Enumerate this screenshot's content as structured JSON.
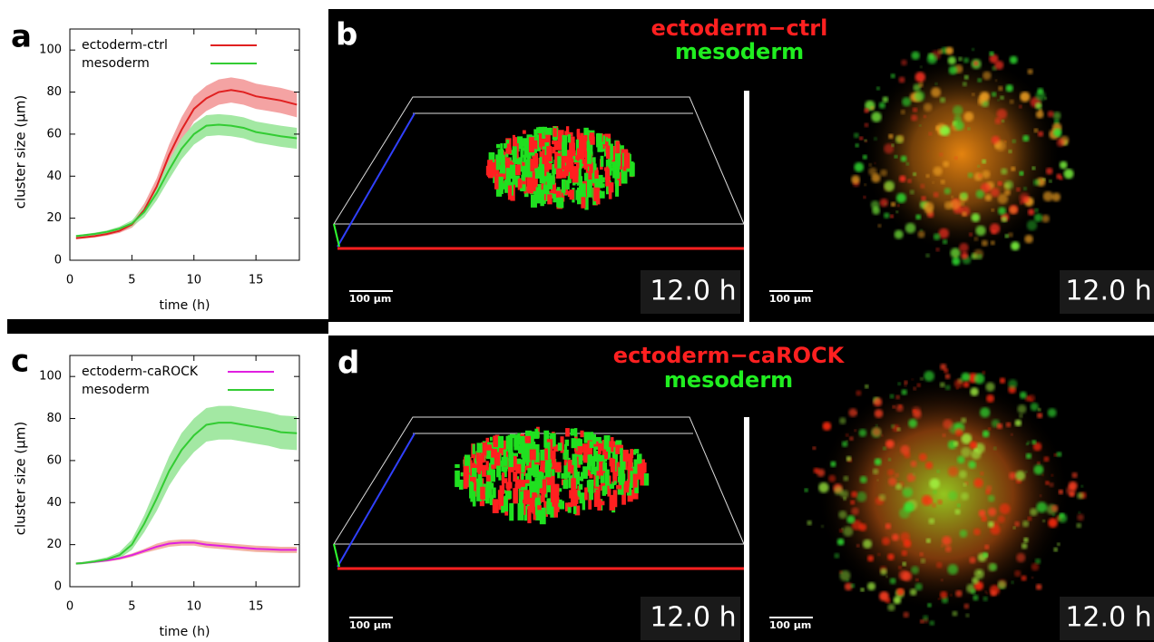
{
  "panel_letters": [
    "a",
    "b",
    "c",
    "d"
  ],
  "chart_data": [
    {
      "type": "line",
      "xlabel": "time (h)",
      "ylabel": "cluster size (µm)",
      "x": [
        0.5,
        1,
        2,
        3,
        4,
        5,
        6,
        7,
        8,
        9,
        10,
        11,
        12,
        13,
        14,
        15,
        16,
        17,
        18.3
      ],
      "xlim": [
        0,
        18.5
      ],
      "xticks": [
        0,
        5,
        10,
        15
      ],
      "ylim": [
        0,
        110
      ],
      "yticks": [
        0,
        20,
        40,
        60,
        80,
        100
      ],
      "legend": "upper left",
      "series": [
        {
          "name": "ectoderm-ctrl",
          "color": "#e02020",
          "band_color": "#f4a3a3",
          "values": [
            10.5,
            10.8,
            11.5,
            12.5,
            14,
            17,
            24,
            35,
            50,
            62,
            72,
            77,
            80,
            81,
            80,
            78,
            77,
            76,
            74
          ],
          "error": [
            0.5,
            0.5,
            0.7,
            0.8,
            1,
            1.5,
            3,
            4,
            5,
            6,
            6,
            6,
            6,
            6,
            6,
            6,
            6,
            6,
            6
          ]
        },
        {
          "name": "mesoderm",
          "color": "#33cc33",
          "band_color": "#a3e8a3",
          "values": [
            11.5,
            11.8,
            12.5,
            13.5,
            15,
            17.5,
            23,
            32,
            43,
            53,
            60,
            64,
            64.5,
            64,
            63,
            61,
            60,
            59,
            58
          ],
          "error": [
            0.5,
            0.5,
            0.6,
            0.7,
            1,
            1.5,
            2.5,
            3.5,
            4.5,
            5,
            5,
            5,
            5,
            5,
            5,
            5,
            5,
            5,
            5
          ]
        }
      ]
    },
    {
      "type": "line",
      "xlabel": "time (h)",
      "ylabel": "cluster size (µm)",
      "x": [
        0.5,
        1,
        2,
        3,
        4,
        5,
        6,
        7,
        8,
        9,
        10,
        11,
        12,
        13,
        14,
        15,
        16,
        17,
        18.3
      ],
      "xlim": [
        0,
        18.5
      ],
      "xticks": [
        0,
        5,
        10,
        15
      ],
      "ylim": [
        0,
        110
      ],
      "yticks": [
        0,
        20,
        40,
        60,
        80,
        100
      ],
      "legend": "upper left",
      "series": [
        {
          "name": "ectoderm-caROCK",
          "color": "#e020e0",
          "band_color": "#f2b3a3",
          "values": [
            11,
            11.2,
            11.8,
            12.5,
            13.5,
            15,
            17,
            19,
            20.5,
            21,
            21,
            20,
            19.5,
            19,
            18.5,
            18,
            17.8,
            17.5,
            17.5
          ],
          "error": [
            0.5,
            0.5,
            0.5,
            0.6,
            0.7,
            0.8,
            1,
            1.5,
            1.5,
            1.5,
            1.5,
            1.5,
            1.5,
            1.5,
            1.5,
            1.5,
            1.5,
            1.5,
            1.5
          ]
        },
        {
          "name": "mesoderm",
          "color": "#33cc33",
          "band_color": "#a3e8a3",
          "values": [
            11,
            11.2,
            12,
            13,
            15,
            20,
            30,
            42,
            55,
            65,
            72,
            77,
            78,
            78,
            77,
            76,
            75,
            73.5,
            73
          ],
          "error": [
            0.5,
            0.5,
            0.7,
            1,
            1.5,
            2.5,
            4,
            6,
            7,
            8,
            8,
            8,
            8,
            8,
            8,
            8,
            8,
            8,
            8
          ]
        }
      ]
    }
  ],
  "images": [
    {
      "labels": [
        "ectoderm−ctrl",
        "mesoderm"
      ],
      "scale_bar": "100 µm",
      "time": "12.0 h"
    },
    {
      "labels": [
        "ectoderm−caROCK",
        "mesoderm"
      ],
      "scale_bar": "100 µm",
      "time": "12.0 h"
    }
  ]
}
